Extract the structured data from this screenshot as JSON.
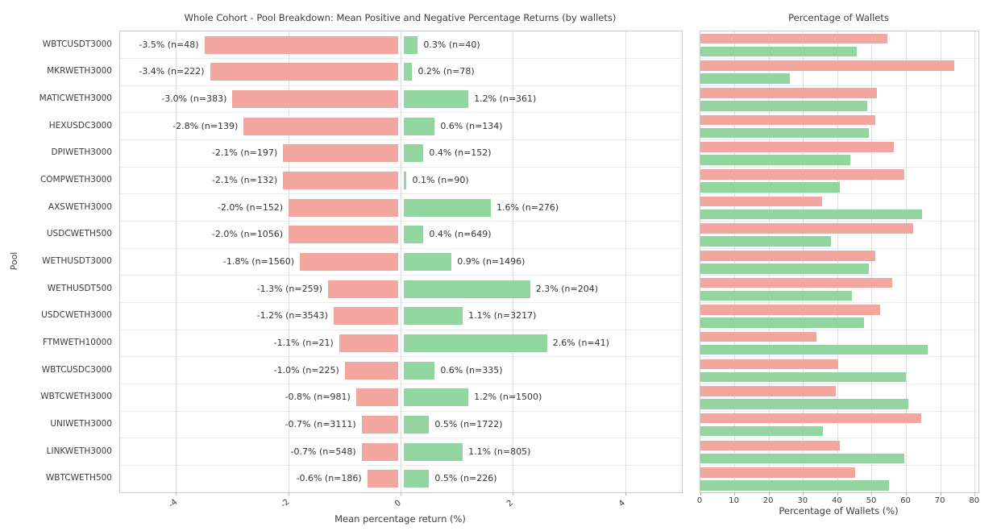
{
  "figure": {
    "background": "#ffffff",
    "text_color": "#3b3b3b",
    "negative_color": "#f3a5a0",
    "positive_color": "#93d5a1",
    "grid_color": "#dedede",
    "border_color": "#cbcbcb"
  },
  "chart_data": [
    {
      "type": "bar",
      "orientation": "horizontal",
      "title": "Whole Cohort - Pool Breakdown: Mean Positive and Negative Percentage Returns (by wallets)",
      "xlabel": "Mean percentage return (%)",
      "ylabel": "Pool",
      "xlim": [
        -5,
        5
      ],
      "x_ticks": [
        -4,
        -2,
        0,
        2,
        4
      ],
      "grid": true,
      "legend": "none",
      "categories": [
        "WBTCUSDT3000",
        "MKRWETH3000",
        "MATICWETH3000",
        "HEXUSDC3000",
        "DPIWETH3000",
        "COMPWETH3000",
        "AXSWETH3000",
        "USDCWETH500",
        "WETHUSDT3000",
        "WETHUSDT500",
        "USDCWETH3000",
        "FTMWETH10000",
        "WBTCUSDC3000",
        "WBTCWETH3000",
        "UNIWETH3000",
        "LINKWETH3000",
        "WBTCWETH500"
      ],
      "series": [
        {
          "name": "mean negative percentage return",
          "color": "#f3a5a0",
          "values": [
            -3.5,
            -3.4,
            -3.0,
            -2.8,
            -2.1,
            -2.1,
            -2.0,
            -2.0,
            -1.8,
            -1.3,
            -1.2,
            -1.1,
            -1.0,
            -0.8,
            -0.7,
            -0.7,
            -0.6
          ],
          "n": [
            48,
            222,
            383,
            139,
            197,
            132,
            152,
            1056,
            1560,
            259,
            3543,
            21,
            225,
            981,
            3111,
            548,
            186
          ],
          "labels": [
            "-3.5% (n=48)",
            "-3.4% (n=222)",
            "-3.0% (n=383)",
            "-2.8% (n=139)",
            "-2.1% (n=197)",
            "-2.1% (n=132)",
            "-2.0% (n=152)",
            "-2.0% (n=1056)",
            "-1.8% (n=1560)",
            "-1.3% (n=259)",
            "-1.2% (n=3543)",
            "-1.1% (n=21)",
            "-1.0% (n=225)",
            "-0.8% (n=981)",
            "-0.7% (n=3111)",
            "-0.7% (n=548)",
            "-0.6% (n=186)"
          ]
        },
        {
          "name": "mean positive percentage return",
          "color": "#93d5a1",
          "values": [
            0.3,
            0.2,
            1.2,
            0.6,
            0.4,
            0.1,
            1.6,
            0.4,
            0.9,
            2.3,
            1.1,
            2.6,
            0.6,
            1.2,
            0.5,
            1.1,
            0.5
          ],
          "n": [
            40,
            78,
            361,
            134,
            152,
            90,
            276,
            649,
            1496,
            204,
            3217,
            41,
            335,
            1500,
            1722,
            805,
            226
          ],
          "labels": [
            "0.3% (n=40)",
            "0.2% (n=78)",
            "1.2% (n=361)",
            "0.6% (n=134)",
            "0.4% (n=152)",
            "0.1% (n=90)",
            "1.6% (n=276)",
            "0.4% (n=649)",
            "0.9% (n=1496)",
            "2.3% (n=204)",
            "1.1% (n=3217)",
            "2.6% (n=41)",
            "0.6% (n=335)",
            "1.2% (n=1500)",
            "0.5% (n=1722)",
            "1.1% (n=805)",
            "0.5% (n=226)"
          ]
        }
      ]
    },
    {
      "type": "bar",
      "orientation": "horizontal",
      "title": "Percentage of Wallets",
      "xlabel": "Percentage of Wallets (%)",
      "ylabel": "",
      "xlim": [
        0,
        81
      ],
      "x_ticks": [
        0,
        10,
        20,
        30,
        40,
        50,
        60,
        70,
        80
      ],
      "grid": true,
      "legend": "none",
      "categories": [
        "WBTCUSDT3000",
        "MKRWETH3000",
        "MATICWETH3000",
        "HEXUSDC3000",
        "DPIWETH3000",
        "COMPWETH3000",
        "AXSWETH3000",
        "USDCWETH500",
        "WETHUSDT3000",
        "WETHUSDT500",
        "USDCWETH3000",
        "FTMWETH10000",
        "WBTCUSDC3000",
        "WBTCWETH3000",
        "UNIWETH3000",
        "LINKWETH3000",
        "WBTCWETH500"
      ],
      "series": [
        {
          "name": "% of wallets with negative returns",
          "color": "#f3a5a0",
          "values": [
            54.5,
            74.0,
            51.5,
            50.9,
            56.4,
            59.5,
            35.5,
            61.9,
            51.0,
            55.9,
            52.4,
            33.9,
            40.2,
            39.5,
            64.4,
            40.5,
            45.1
          ]
        },
        {
          "name": "% of wallets with positive returns",
          "color": "#93d5a1",
          "values": [
            45.5,
            26.0,
            48.5,
            49.1,
            43.6,
            40.5,
            64.5,
            38.1,
            49.0,
            44.1,
            47.6,
            66.1,
            59.8,
            60.5,
            35.6,
            59.5,
            54.9
          ]
        }
      ]
    }
  ]
}
